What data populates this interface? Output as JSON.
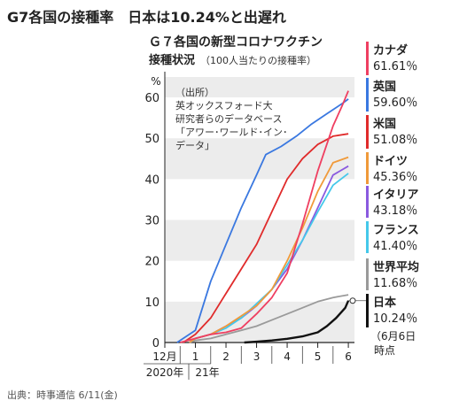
{
  "headline": "G7各国の接種率　日本は10.24%と出遅れ",
  "source": "出典：時事通信 6/11(金)",
  "chart_data": {
    "type": "line",
    "title": "Ｇ７各国の新型コロナワクチン",
    "subtitle_main": "接種状況",
    "subtitle_note": "（100人当たりの接種率）",
    "ylabel": "%",
    "ylim": [
      0,
      65
    ],
    "yticks": [
      0,
      10,
      20,
      30,
      40,
      50,
      60
    ],
    "x_range": [
      12,
      18.2
    ],
    "grid": true,
    "xticks": [
      {
        "x": 12,
        "label": "12月"
      },
      {
        "x": 13,
        "label": "1"
      },
      {
        "x": 14,
        "label": "2"
      },
      {
        "x": 15,
        "label": "3"
      },
      {
        "x": 16,
        "label": "4"
      },
      {
        "x": 17,
        "label": "5"
      },
      {
        "x": 18,
        "label": "6"
      }
    ],
    "year_labels": [
      "2020年",
      "21年"
    ],
    "date_note": [
      "（6月6日",
      "時点"
    ],
    "annotation": [
      "（出所）",
      "英オックスフォード大",
      "研究者らのデータベース",
      "「アワー･ワールド･イン･",
      "データ」"
    ],
    "series": [
      {
        "name": "カナダ",
        "value_label": "61.61％",
        "color": "#ef3f61",
        "points": [
          [
            12.5,
            0
          ],
          [
            13,
            1
          ],
          [
            13.5,
            2
          ],
          [
            14,
            2.5
          ],
          [
            14.5,
            3.5
          ],
          [
            15,
            7
          ],
          [
            15.5,
            11
          ],
          [
            16,
            17
          ],
          [
            16.5,
            29
          ],
          [
            17,
            42
          ],
          [
            17.5,
            53
          ],
          [
            17.8,
            58
          ],
          [
            18,
            61.61
          ]
        ]
      },
      {
        "name": "英国",
        "value_label": "59.60％",
        "color": "#3a78e0",
        "points": [
          [
            12.4,
            0
          ],
          [
            13,
            3
          ],
          [
            13.5,
            15
          ],
          [
            14,
            24
          ],
          [
            14.5,
            33
          ],
          [
            15,
            41
          ],
          [
            15.3,
            46
          ],
          [
            15.8,
            48
          ],
          [
            16.3,
            50.5
          ],
          [
            16.8,
            53.5
          ],
          [
            17.3,
            56
          ],
          [
            17.8,
            58.5
          ],
          [
            18,
            59.6
          ]
        ]
      },
      {
        "name": "米国",
        "value_label": "51.08％",
        "color": "#e02b2b",
        "points": [
          [
            12.6,
            0
          ],
          [
            13,
            2
          ],
          [
            13.5,
            6
          ],
          [
            14,
            12
          ],
          [
            14.5,
            18
          ],
          [
            15,
            24
          ],
          [
            15.5,
            32
          ],
          [
            16,
            40
          ],
          [
            16.5,
            45
          ],
          [
            17,
            48.5
          ],
          [
            17.5,
            50.5
          ],
          [
            18,
            51.08
          ]
        ]
      },
      {
        "name": "ドイツ",
        "value_label": "45.36％",
        "color": "#f09a3a",
        "points": [
          [
            12.8,
            0
          ],
          [
            13,
            1
          ],
          [
            13.5,
            2
          ],
          [
            14,
            4
          ],
          [
            14.5,
            6.5
          ],
          [
            15,
            9
          ],
          [
            15.5,
            13
          ],
          [
            16,
            20
          ],
          [
            16.5,
            28
          ],
          [
            17,
            37
          ],
          [
            17.5,
            44
          ],
          [
            18,
            45.36
          ]
        ]
      },
      {
        "name": "イタリア",
        "value_label": "43.18％",
        "color": "#8a5adf",
        "points": [
          [
            12.8,
            0
          ],
          [
            13,
            1
          ],
          [
            13.5,
            2
          ],
          [
            14,
            4
          ],
          [
            14.5,
            6
          ],
          [
            15,
            9
          ],
          [
            15.5,
            13
          ],
          [
            16,
            18
          ],
          [
            16.5,
            25
          ],
          [
            17,
            33
          ],
          [
            17.5,
            41
          ],
          [
            18,
            43.18
          ]
        ]
      },
      {
        "name": "フランス",
        "value_label": "41.40％",
        "color": "#45c8ea",
        "points": [
          [
            12.8,
            0
          ],
          [
            13,
            1
          ],
          [
            13.5,
            2
          ],
          [
            14,
            3.5
          ],
          [
            14.5,
            6
          ],
          [
            15,
            9.5
          ],
          [
            15.5,
            13
          ],
          [
            16,
            19
          ],
          [
            16.5,
            25
          ],
          [
            17,
            32
          ],
          [
            17.5,
            38.5
          ],
          [
            18,
            41.4
          ]
        ]
      },
      {
        "name": "世界平均",
        "value_label": "11.68％",
        "color": "#9a9a9a",
        "points": [
          [
            12.8,
            0
          ],
          [
            13,
            0.5
          ],
          [
            13.5,
            1
          ],
          [
            14,
            2
          ],
          [
            14.5,
            3
          ],
          [
            15,
            4
          ],
          [
            15.5,
            5.5
          ],
          [
            16,
            7
          ],
          [
            16.5,
            8.5
          ],
          [
            17,
            10
          ],
          [
            17.5,
            11
          ],
          [
            18,
            11.68
          ]
        ]
      },
      {
        "name": "日本",
        "value_label": "10.24％",
        "color": "#111111",
        "points": [
          [
            14.6,
            0
          ],
          [
            15,
            0.2
          ],
          [
            15.5,
            0.5
          ],
          [
            16,
            0.9
          ],
          [
            16.5,
            1.5
          ],
          [
            17,
            2.5
          ],
          [
            17.3,
            4
          ],
          [
            17.6,
            6
          ],
          [
            17.9,
            8.5
          ],
          [
            18,
            10.24
          ]
        ]
      }
    ]
  }
}
